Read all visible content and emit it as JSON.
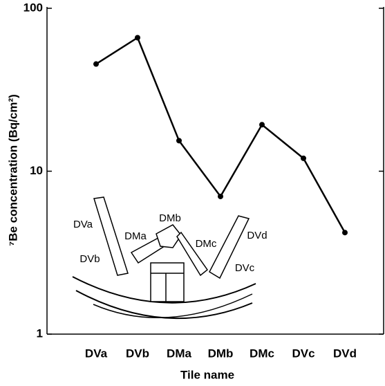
{
  "chart_data": {
    "type": "line",
    "x_label": "Tile name",
    "y_label": "⁷Be concentration (Bq/cm²)",
    "categories": [
      "DVa",
      "DVb",
      "DMa",
      "DMb",
      "DMc",
      "DVc",
      "DVd"
    ],
    "series": [
      {
        "color": "#000000",
        "values": [
          45.5,
          66,
          15.4,
          7.0,
          19.3,
          12,
          4.2
        ]
      }
    ],
    "log_scale": true,
    "ylim": [
      1,
      100
    ],
    "yticks": [
      1,
      10,
      100
    ],
    "inset_labels": [
      "DVa",
      "DMa",
      "DMb",
      "DMc",
      "DVd",
      "DVb",
      "DVc"
    ]
  }
}
